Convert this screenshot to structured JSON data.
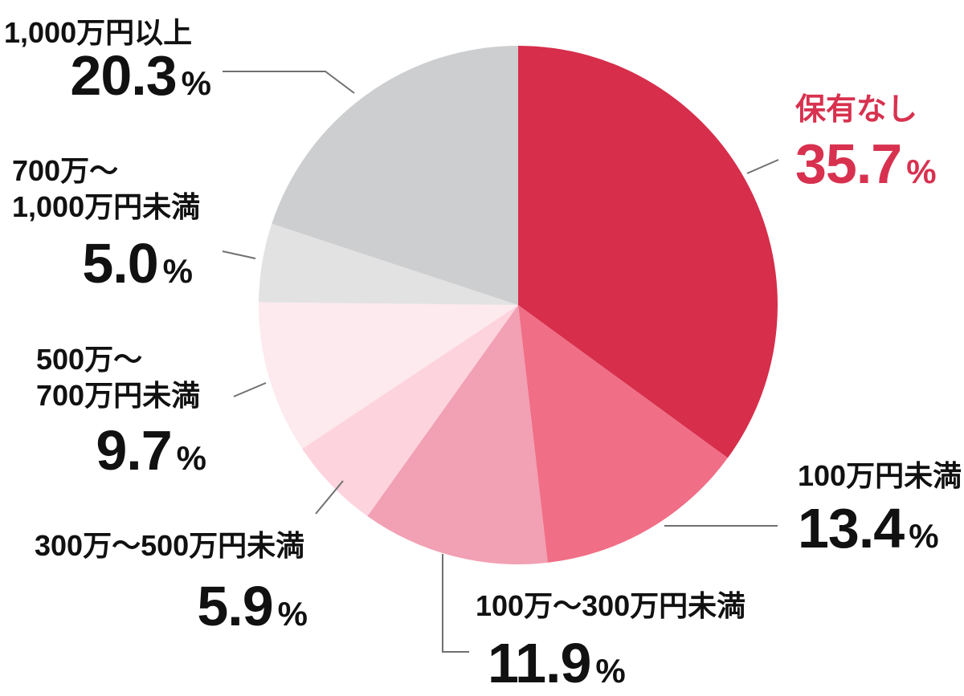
{
  "chart_data": {
    "type": "pie",
    "title": "",
    "unit": "%",
    "direction": "clockwise",
    "start_angle_deg": 0,
    "legend": "none",
    "leader_line_color": "#707070",
    "label_text_color": "#111111",
    "emphasis_text_color": "#d8314f",
    "slices": [
      {
        "label": "保有なし",
        "value": 35.7,
        "display_value": "35.7",
        "color": "#d62e4b",
        "emphasized": true
      },
      {
        "label": "100万円未満",
        "value": 13.4,
        "display_value": "13.4",
        "color": "#f06e86",
        "emphasized": false
      },
      {
        "label": "100万〜300万円未満",
        "value": 11.9,
        "display_value": "11.9",
        "color": "#f2a0b3",
        "emphasized": false
      },
      {
        "label": "300万〜500万円未満",
        "value": 5.9,
        "display_value": "5.9",
        "color": "#fdd3de",
        "emphasized": false
      },
      {
        "label": "500万〜700万円未満",
        "value": 9.7,
        "display_value": "9.7",
        "color": "#fdeaee",
        "emphasized": false,
        "label_lines": [
          "500万〜",
          "700万円未満"
        ]
      },
      {
        "label": "700万〜1,000万円未満",
        "value": 5.0,
        "display_value": "5.0",
        "color": "#e3e2e2",
        "emphasized": false,
        "label_lines": [
          "700万〜",
          "1,000万円未満"
        ]
      },
      {
        "label": "1,000万円以上",
        "value": 20.3,
        "display_value": "20.3",
        "color": "#cdced0",
        "emphasized": false
      }
    ]
  }
}
